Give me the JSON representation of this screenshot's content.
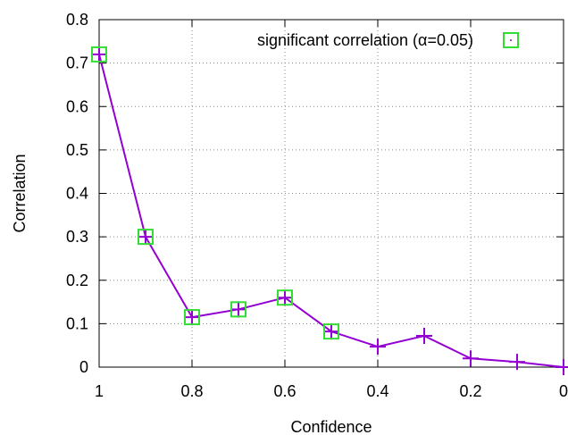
{
  "chart_data": {
    "type": "line",
    "xlabel": "Confidence",
    "ylabel": "Correlation",
    "xlim": [
      1,
      0
    ],
    "ylim": [
      0,
      0.8
    ],
    "x_ticks": [
      "1",
      "0.8",
      "0.6",
      "0.4",
      "0.2",
      "0"
    ],
    "y_ticks": [
      "0",
      "0.1",
      "0.2",
      "0.3",
      "0.4",
      "0.5",
      "0.6",
      "0.7",
      "0.8"
    ],
    "grid": true,
    "legend_position": "top-right",
    "series": [
      {
        "x": [
          1.0,
          0.9,
          0.8,
          0.7,
          0.6,
          0.5,
          0.4,
          0.3,
          0.2,
          0.1,
          0.0
        ],
        "y": [
          0.72,
          0.3,
          0.115,
          0.133,
          0.16,
          0.082,
          0.047,
          0.072,
          0.02,
          0.012,
          0.0
        ],
        "color": "#9400d3",
        "marker": "plus"
      },
      {
        "name": "significant correlation (α=0.05)",
        "x": [
          1.0,
          0.9,
          0.8,
          0.7,
          0.6,
          0.5
        ],
        "y": [
          0.72,
          0.3,
          0.115,
          0.133,
          0.16,
          0.082
        ],
        "color": "#33dd33",
        "marker": "square"
      }
    ]
  }
}
